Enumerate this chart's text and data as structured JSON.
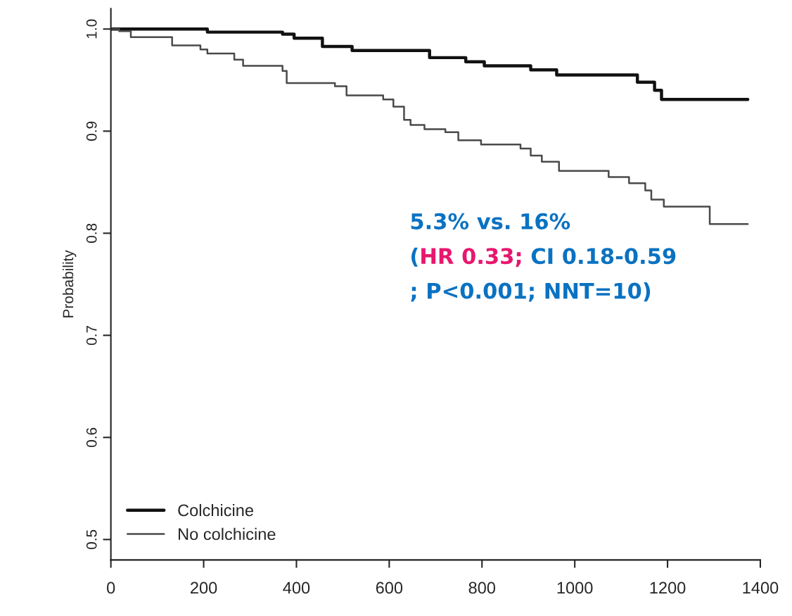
{
  "chart_data": {
    "type": "step",
    "ylabel": "Probability",
    "xlim": [
      0,
      1400
    ],
    "ylim": [
      0.48,
      1.02
    ],
    "xticks": [
      0,
      200,
      400,
      600,
      800,
      1000,
      1200,
      1400
    ],
    "yticks": [
      0.5,
      0.6,
      0.7,
      0.8,
      0.9,
      {
        "value": 1,
        "label": "1.0"
      }
    ],
    "grid": false,
    "legend": "bottom left",
    "series": [
      {
        "name": "Colchicine",
        "color": "#111111",
        "x": [
          0,
          208,
          370,
          395,
          456,
          520,
          687,
          765,
          805,
          905,
          961,
          1135,
          1172,
          1187,
          1373
        ],
        "values": [
          1.0,
          0.997,
          0.995,
          0.991,
          0.983,
          0.979,
          0.972,
          0.968,
          0.964,
          0.96,
          0.955,
          0.948,
          0.94,
          0.931,
          0.931
        ]
      },
      {
        "name": "No colchicine",
        "color": "#4a4a4a",
        "x": [
          0,
          18,
          43,
          132,
          193,
          208,
          266,
          285,
          370,
          379,
          483,
          508,
          587,
          609,
          632,
          646,
          676,
          721,
          749,
          798,
          883,
          905,
          929,
          966,
          1073,
          1117,
          1152,
          1165,
          1192,
          1291,
          1373
        ],
        "values": [
          1.0,
          0.998,
          0.992,
          0.984,
          0.98,
          0.976,
          0.97,
          0.964,
          0.959,
          0.947,
          0.944,
          0.935,
          0.931,
          0.924,
          0.911,
          0.906,
          0.902,
          0.899,
          0.891,
          0.887,
          0.883,
          0.876,
          0.87,
          0.861,
          0.855,
          0.849,
          0.842,
          0.833,
          0.826,
          0.809,
          0.809
        ]
      }
    ],
    "annotations": [
      "5.3% vs. 16%",
      "(",
      "HR 0.33;",
      " CI 0.18-0.59",
      "; P<0.001; NNT=10)"
    ]
  }
}
